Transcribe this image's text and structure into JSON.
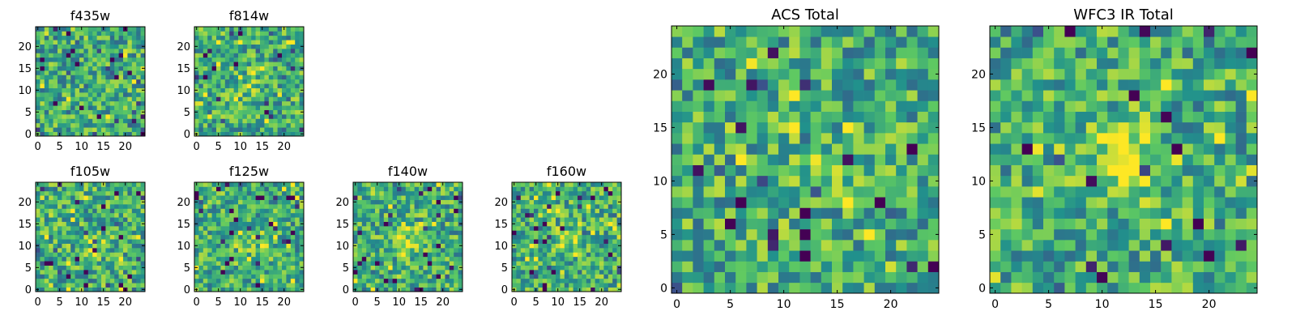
{
  "figure": {
    "background": "#ffffff",
    "colormap": "viridis",
    "colormap_stops": [
      "#440154",
      "#3b528b",
      "#21918c",
      "#5ec962",
      "#fde725"
    ]
  },
  "chart_data": [
    {
      "type": "heatmap",
      "id": "f435w",
      "title": "f435w",
      "grid_size": 25,
      "xlim": [
        0,
        24
      ],
      "ylim": [
        0,
        24
      ],
      "xticks": [
        0,
        5,
        10,
        15,
        20
      ],
      "xtick_labels": [
        "0",
        "5",
        "10",
        "15",
        "20"
      ],
      "yticks": [
        0,
        5,
        10,
        15,
        20
      ],
      "ytick_labels": [
        "0",
        "5",
        "10",
        "15",
        "20"
      ],
      "values_note": "pixel noise field; no visible hotspot"
    },
    {
      "type": "heatmap",
      "id": "f814w",
      "title": "f814w",
      "grid_size": 25,
      "xlim": [
        0,
        24
      ],
      "ylim": [
        0,
        24
      ],
      "xticks": [
        0,
        5,
        10,
        15,
        20
      ],
      "xtick_labels": [
        "0",
        "5",
        "10",
        "15",
        "20"
      ],
      "yticks": [
        0,
        5,
        10,
        15,
        20
      ],
      "ytick_labels": [
        "0",
        "5",
        "10",
        "15",
        "20"
      ]
    },
    {
      "type": "heatmap",
      "id": "f105w",
      "title": "f105w",
      "grid_size": 25,
      "xlim": [
        0,
        24
      ],
      "ylim": [
        0,
        24
      ],
      "xticks": [
        0,
        5,
        10,
        15,
        20
      ],
      "xtick_labels": [
        "0",
        "5",
        "10",
        "15",
        "20"
      ],
      "yticks": [
        0,
        5,
        10,
        15,
        20
      ],
      "ytick_labels": [
        "0",
        "5",
        "10",
        "15",
        "20"
      ]
    },
    {
      "type": "heatmap",
      "id": "f125w",
      "title": "f125w",
      "grid_size": 25,
      "xlim": [
        0,
        24
      ],
      "ylim": [
        0,
        24
      ],
      "xticks": [
        0,
        5,
        10,
        15,
        20
      ],
      "xtick_labels": [
        "0",
        "5",
        "10",
        "15",
        "20"
      ],
      "yticks": [
        0,
        5,
        10,
        15,
        20
      ],
      "ytick_labels": [
        "0",
        "5",
        "10",
        "15",
        "20"
      ]
    },
    {
      "type": "heatmap",
      "id": "f140w",
      "title": "f140w",
      "grid_size": 25,
      "xlim": [
        0,
        24
      ],
      "ylim": [
        0,
        24
      ],
      "xticks": [
        0,
        5,
        10,
        15,
        20
      ],
      "xtick_labels": [
        "0",
        "5",
        "10",
        "15",
        "20"
      ],
      "yticks": [
        0,
        5,
        10,
        15,
        20
      ],
      "ytick_labels": [
        "0",
        "5",
        "10",
        "15",
        "20"
      ]
    },
    {
      "type": "heatmap",
      "id": "f160w",
      "title": "f160w",
      "grid_size": 25,
      "xlim": [
        0,
        24
      ],
      "ylim": [
        0,
        24
      ],
      "xticks": [
        0,
        5,
        10,
        15,
        20
      ],
      "xtick_labels": [
        "0",
        "5",
        "10",
        "15",
        "20"
      ],
      "yticks": [
        0,
        5,
        10,
        15,
        20
      ],
      "ytick_labels": [
        "0",
        "5",
        "10",
        "15",
        "20"
      ]
    },
    {
      "type": "heatmap",
      "id": "acs_total",
      "title": "ACS Total",
      "grid_size": 25,
      "xlim": [
        0,
        24
      ],
      "ylim": [
        0,
        24
      ],
      "xticks": [
        0,
        5,
        10,
        15,
        20
      ],
      "xtick_labels": [
        "0",
        "5",
        "10",
        "15",
        "20"
      ],
      "yticks": [
        0,
        5,
        10,
        15,
        20
      ],
      "ytick_labels": [
        "0",
        "5",
        "10",
        "15",
        "20"
      ]
    },
    {
      "type": "heatmap",
      "id": "wfc3_ir_total",
      "title": "WFC3 IR Total",
      "grid_size": 25,
      "xlim": [
        0,
        24
      ],
      "ylim": [
        0,
        24
      ],
      "xticks": [
        0,
        5,
        10,
        15,
        20
      ],
      "xtick_labels": [
        "0",
        "5",
        "10",
        "15",
        "20"
      ],
      "yticks": [
        0,
        5,
        10,
        15,
        20
      ],
      "ytick_labels": [
        "0",
        "5",
        "10",
        "15",
        "20"
      ]
    }
  ]
}
